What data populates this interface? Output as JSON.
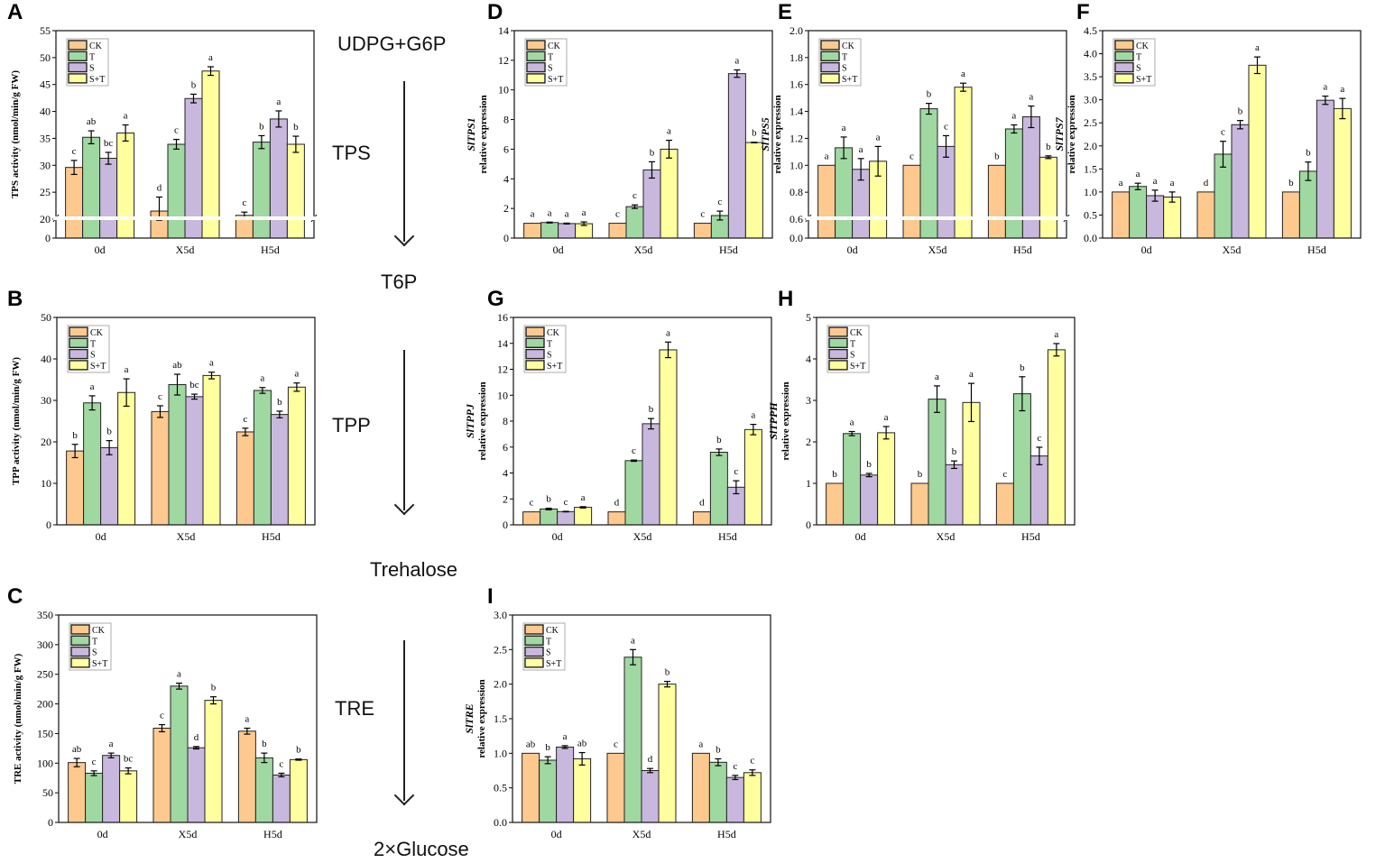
{
  "colors": {
    "CK": "#fdc98f",
    "T": "#a0d8a2",
    "S": "#c9b8de",
    "S+T": "#ffff9f"
  },
  "pathway": {
    "substrate": "UDPG+G6P",
    "enzyme1": "TPS",
    "product1": "T6P",
    "enzyme2": "TPP",
    "product2": "Trehalose",
    "enzyme3": "TRE",
    "product3": "2×Glucose"
  },
  "chart_data": [
    {
      "panel": "A",
      "type": "bar",
      "ylabel": "TPS activity (nmol/min/g FW)",
      "ylim": [
        0,
        55
      ],
      "y_break": 20,
      "yticks": [
        0,
        20,
        25,
        30,
        35,
        40,
        45,
        50,
        55
      ],
      "categories": [
        "0d",
        "X5d",
        "H5d"
      ],
      "series": [
        {
          "name": "CK",
          "values": [
            29.6,
            21.5,
            20.7
          ],
          "errors": [
            1.3,
            2.6,
            0.6
          ],
          "letters": [
            "c",
            "d",
            "c"
          ]
        },
        {
          "name": "T",
          "values": [
            35.2,
            33.9,
            34.3
          ],
          "errors": [
            1.2,
            0.9,
            1.2
          ],
          "letters": [
            "ab",
            "c",
            "b"
          ]
        },
        {
          "name": "S",
          "values": [
            31.3,
            42.4,
            38.6
          ],
          "errors": [
            1.1,
            0.8,
            1.5
          ],
          "letters": [
            "bc",
            "b",
            "a"
          ]
        },
        {
          "name": "S+T",
          "values": [
            36.0,
            47.5,
            33.9
          ],
          "errors": [
            1.5,
            0.8,
            1.5
          ],
          "letters": [
            "a",
            "a",
            "b"
          ]
        }
      ]
    },
    {
      "panel": "B",
      "type": "bar",
      "ylabel": "TPP activity (nmol/min/g FW)",
      "ylim": [
        0,
        50
      ],
      "yticks": [
        0,
        10,
        20,
        30,
        40,
        50
      ],
      "categories": [
        "0d",
        "X5d",
        "H5d"
      ],
      "series": [
        {
          "name": "CK",
          "values": [
            17.8,
            27.3,
            22.4
          ],
          "errors": [
            1.6,
            1.4,
            0.9
          ],
          "letters": [
            "b",
            "c",
            "c"
          ]
        },
        {
          "name": "T",
          "values": [
            29.4,
            33.8,
            32.4
          ],
          "errors": [
            1.7,
            2.5,
            0.7
          ],
          "letters": [
            "a",
            "ab",
            "a"
          ]
        },
        {
          "name": "S",
          "values": [
            18.6,
            30.9,
            26.6
          ],
          "errors": [
            1.7,
            0.6,
            0.8
          ],
          "letters": [
            "b",
            "bc",
            "b"
          ]
        },
        {
          "name": "S+T",
          "values": [
            31.9,
            36.0,
            33.2
          ],
          "errors": [
            3.3,
            0.8,
            1.0
          ],
          "letters": [
            "a",
            "a",
            "a"
          ]
        }
      ]
    },
    {
      "panel": "C",
      "type": "bar",
      "ylabel": "TRE activity (nmol/min/g FW)",
      "ylim": [
        0,
        350
      ],
      "yticks": [
        0,
        50,
        100,
        150,
        200,
        250,
        300,
        350
      ],
      "categories": [
        "0d",
        "X5d",
        "H5d"
      ],
      "series": [
        {
          "name": "CK",
          "values": [
            101,
            159,
            154
          ],
          "errors": [
            7,
            6,
            5
          ],
          "letters": [
            "ab",
            "c",
            "a"
          ]
        },
        {
          "name": "T",
          "values": [
            83,
            230,
            109
          ],
          "errors": [
            4,
            5,
            8
          ],
          "letters": [
            "c",
            "a",
            "b"
          ]
        },
        {
          "name": "S",
          "values": [
            113,
            126,
            80
          ],
          "errors": [
            4,
            2,
            3
          ],
          "letters": [
            "a",
            "d",
            "c"
          ]
        },
        {
          "name": "S+T",
          "values": [
            87,
            206,
            106
          ],
          "errors": [
            5,
            6,
            1
          ],
          "letters": [
            "bc",
            "b",
            "b"
          ]
        }
      ]
    },
    {
      "panel": "D",
      "type": "bar",
      "gene": "SlTPS1",
      "ylabel": "relative expression",
      "ylim": [
        0,
        14
      ],
      "yticks": [
        0,
        2,
        4,
        6,
        8,
        10,
        12,
        14
      ],
      "categories": [
        "0d",
        "X5d",
        "H5d"
      ],
      "series": [
        {
          "name": "CK",
          "values": [
            1.0,
            1.0,
            1.0
          ],
          "errors": [
            0,
            0,
            0
          ],
          "letters": [
            "a",
            "c",
            "c"
          ]
        },
        {
          "name": "T",
          "values": [
            1.05,
            2.12,
            1.52
          ],
          "errors": [
            0.03,
            0.12,
            0.3
          ],
          "letters": [
            "a",
            "c",
            "c"
          ]
        },
        {
          "name": "S",
          "values": [
            0.98,
            4.6,
            11.1
          ],
          "errors": [
            0.03,
            0.55,
            0.25
          ],
          "letters": [
            "a",
            "b",
            "a"
          ]
        },
        {
          "name": "S+T",
          "values": [
            0.97,
            6.0,
            6.45
          ],
          "errors": [
            0.12,
            0.6,
            0.02
          ],
          "letters": [
            "a",
            "a",
            "b"
          ]
        }
      ]
    },
    {
      "panel": "E",
      "type": "bar",
      "gene": "SlTPS5",
      "ylabel": "relative expression",
      "ylim": [
        0,
        2.0
      ],
      "y_break": 0.6,
      "yticks": [
        0.0,
        0.6,
        0.8,
        1.0,
        1.2,
        1.4,
        1.6,
        1.8,
        2.0
      ],
      "categories": [
        "0d",
        "X5d",
        "H5d"
      ],
      "series": [
        {
          "name": "CK",
          "values": [
            1.0,
            1.0,
            1.0
          ],
          "errors": [
            0,
            0,
            0
          ],
          "letters": [
            "a",
            "c",
            "b"
          ]
        },
        {
          "name": "T",
          "values": [
            1.13,
            1.42,
            1.27
          ],
          "errors": [
            0.08,
            0.04,
            0.03
          ],
          "letters": [
            "a",
            "b",
            "a"
          ]
        },
        {
          "name": "S",
          "values": [
            0.97,
            1.14,
            1.36
          ],
          "errors": [
            0.08,
            0.08,
            0.08
          ],
          "letters": [
            "a",
            "c",
            "a"
          ]
        },
        {
          "name": "S+T",
          "values": [
            1.03,
            1.58,
            1.06
          ],
          "errors": [
            0.11,
            0.03,
            0.01
          ],
          "letters": [
            "a",
            "a",
            "b"
          ]
        }
      ]
    },
    {
      "panel": "F",
      "type": "bar",
      "gene": "SlTPS7",
      "ylabel": "relative expression",
      "ylim": [
        0,
        4.5
      ],
      "yticks": [
        0.0,
        0.5,
        1.0,
        1.5,
        2.0,
        2.5,
        3.0,
        3.5,
        4.0,
        4.5
      ],
      "categories": [
        "0d",
        "X5d",
        "H5d"
      ],
      "series": [
        {
          "name": "CK",
          "values": [
            1.0,
            1.0,
            1.0
          ],
          "errors": [
            0,
            0,
            0
          ],
          "letters": [
            "a",
            "d",
            "b"
          ]
        },
        {
          "name": "T",
          "values": [
            1.12,
            1.82,
            1.45
          ],
          "errors": [
            0.07,
            0.28,
            0.2
          ],
          "letters": [
            "a",
            "c",
            "b"
          ]
        },
        {
          "name": "S",
          "values": [
            0.92,
            2.46,
            2.99
          ],
          "errors": [
            0.12,
            0.09,
            0.09
          ],
          "letters": [
            "a",
            "b",
            "a"
          ]
        },
        {
          "name": "S+T",
          "values": [
            0.89,
            3.75,
            2.81
          ],
          "errors": [
            0.11,
            0.18,
            0.22
          ],
          "letters": [
            "a",
            "a",
            "a"
          ]
        }
      ]
    },
    {
      "panel": "G",
      "type": "bar",
      "gene": "SlTPPJ",
      "ylabel": "relative expression",
      "ylim": [
        0,
        16
      ],
      "yticks": [
        0,
        2,
        4,
        6,
        8,
        10,
        12,
        14,
        16
      ],
      "categories": [
        "0d",
        "X5d",
        "H5d"
      ],
      "series": [
        {
          "name": "CK",
          "values": [
            1.0,
            1.0,
            1.0
          ],
          "errors": [
            0,
            0,
            0
          ],
          "letters": [
            "c",
            "d",
            "d"
          ]
        },
        {
          "name": "T",
          "values": [
            1.22,
            4.95,
            5.6
          ],
          "errors": [
            0.06,
            0.05,
            0.25
          ],
          "letters": [
            "b",
            "c",
            "b"
          ]
        },
        {
          "name": "S",
          "values": [
            1.02,
            7.8,
            2.9
          ],
          "errors": [
            0.02,
            0.4,
            0.5
          ],
          "letters": [
            "c",
            "b",
            "c"
          ]
        },
        {
          "name": "S+T",
          "values": [
            1.35,
            13.5,
            7.35
          ],
          "errors": [
            0.05,
            0.6,
            0.4
          ],
          "letters": [
            "a",
            "a",
            "a"
          ]
        }
      ]
    },
    {
      "panel": "H",
      "type": "bar",
      "gene": "SlTPPH",
      "ylabel": "relative expression",
      "ylim": [
        0,
        5
      ],
      "yticks": [
        0,
        1,
        2,
        3,
        4,
        5
      ],
      "categories": [
        "0d",
        "X5d",
        "H5d"
      ],
      "series": [
        {
          "name": "CK",
          "values": [
            1.0,
            1.0,
            1.0
          ],
          "errors": [
            0,
            0,
            0
          ],
          "letters": [
            "b",
            "b",
            "c"
          ]
        },
        {
          "name": "T",
          "values": [
            2.2,
            3.03,
            3.16
          ],
          "errors": [
            0.05,
            0.32,
            0.41
          ],
          "letters": [
            "a",
            "a",
            "b"
          ]
        },
        {
          "name": "S",
          "values": [
            1.2,
            1.45,
            1.66
          ],
          "errors": [
            0.04,
            0.09,
            0.21
          ],
          "letters": [
            "b",
            "b",
            "c"
          ]
        },
        {
          "name": "S+T",
          "values": [
            2.22,
            2.95,
            4.22
          ],
          "errors": [
            0.15,
            0.46,
            0.15
          ],
          "letters": [
            "a",
            "a",
            "a"
          ]
        }
      ]
    },
    {
      "panel": "I",
      "type": "bar",
      "gene": "SlTRE",
      "ylabel": "relative expression",
      "ylim": [
        0,
        3.0
      ],
      "yticks": [
        0.0,
        0.5,
        1.0,
        1.5,
        2.0,
        2.5,
        3.0
      ],
      "categories": [
        "0d",
        "X5d",
        "H5d"
      ],
      "series": [
        {
          "name": "CK",
          "values": [
            1.0,
            1.0,
            1.0
          ],
          "errors": [
            0,
            0,
            0
          ],
          "letters": [
            "ab",
            "c",
            "a"
          ]
        },
        {
          "name": "T",
          "values": [
            0.9,
            2.39,
            0.87
          ],
          "errors": [
            0.05,
            0.11,
            0.05
          ],
          "letters": [
            "b",
            "a",
            "b"
          ]
        },
        {
          "name": "S",
          "values": [
            1.09,
            0.75,
            0.65
          ],
          "errors": [
            0.02,
            0.03,
            0.03
          ],
          "letters": [
            "a",
            "d",
            "c"
          ]
        },
        {
          "name": "S+T",
          "values": [
            0.92,
            2.0,
            0.72
          ],
          "errors": [
            0.09,
            0.04,
            0.04
          ],
          "letters": [
            "ab",
            "b",
            "c"
          ]
        }
      ]
    }
  ]
}
